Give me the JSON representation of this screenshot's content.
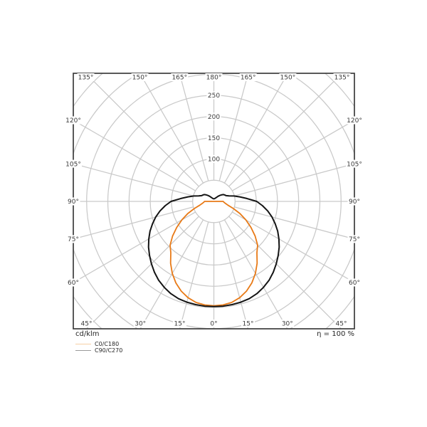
{
  "labels": {
    "unit": "cd/klm",
    "efficiency": "η = 100 %"
  },
  "legend": {
    "swatch_colors": [
      "#f6cfa4",
      "#999999"
    ]
  },
  "chart_data": {
    "type": "line",
    "subtype": "polar-luminous-intensity-distribution",
    "title": "",
    "unit": "cd/klm",
    "grid_on": true,
    "legend_position": "bottom-left",
    "r_axis": {
      "tick_step": 50,
      "labeled_ticks": [
        100,
        150,
        200,
        250
      ],
      "inner_ring": 50,
      "max_ring": 450
    },
    "angle_grid_step_deg": 15,
    "angle_labels": {
      "top": [
        "135°",
        "150°",
        "165°",
        "180°",
        "165°",
        "150°",
        "135°"
      ],
      "top_angles": [
        135,
        150,
        165,
        180,
        165,
        150,
        135
      ],
      "left": [
        "120°",
        "105°",
        "90°",
        "75°",
        "60°"
      ],
      "side_angles": [
        120,
        105,
        90,
        75,
        60
      ],
      "right": [
        "120°",
        "105°",
        "90°",
        "75°",
        "60°"
      ],
      "bottom": [
        "45°",
        "30°",
        "15°",
        "0°",
        "15°",
        "30°",
        "45°"
      ],
      "bottom_angles": [
        45,
        30,
        15,
        0,
        15,
        30,
        45
      ]
    },
    "series": [
      {
        "name": "C0/C180",
        "color": "#e87a17",
        "angle_step_deg": 5,
        "max_angle_deg": 90,
        "symmetric": true,
        "values_cd_per_klm": [
          246,
          245,
          242,
          235,
          225,
          212,
          196,
          178,
          158,
          146,
          127,
          107,
          87,
          68,
          49,
          34,
          28,
          24,
          22
        ]
      },
      {
        "name": "C90/C270",
        "color": "#141414",
        "angle_step_deg": 5,
        "max_angle_deg": 180,
        "symmetric": true,
        "values_cd_per_klm": [
          248,
          248,
          247,
          246,
          244,
          240,
          234,
          227,
          218,
          208,
          198,
          188,
          177,
          166,
          154,
          142,
          129,
          115,
          101,
          78,
          62,
          49,
          38,
          32,
          30,
          28,
          24,
          20,
          16,
          12.5,
          10,
          8.5,
          7.5,
          7,
          6.5,
          6.2,
          6
        ]
      }
    ],
    "grid_color": "#c9c9c9",
    "frame_color": "#3c3c3c",
    "tick_label_color": "#3a3a3a"
  }
}
